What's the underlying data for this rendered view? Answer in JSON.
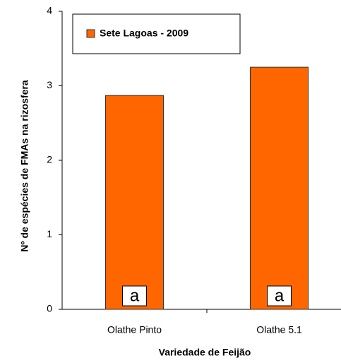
{
  "chart_data": {
    "type": "bar",
    "legend_label": "Sete Lagoas - 2009",
    "x_label": "Variedade de Feijão",
    "y_label": "Nº de espécies de FMAs na rizosfera",
    "categories": [
      "Olathe Pinto",
      "Olathe 5.1"
    ],
    "values": [
      2.87,
      3.25
    ],
    "bar_labels": [
      "a",
      "a"
    ],
    "color": "#ff6600",
    "ylim": [
      0,
      4
    ],
    "yticks": [
      0,
      1,
      2,
      3,
      4
    ],
    "legend": "top-left"
  }
}
